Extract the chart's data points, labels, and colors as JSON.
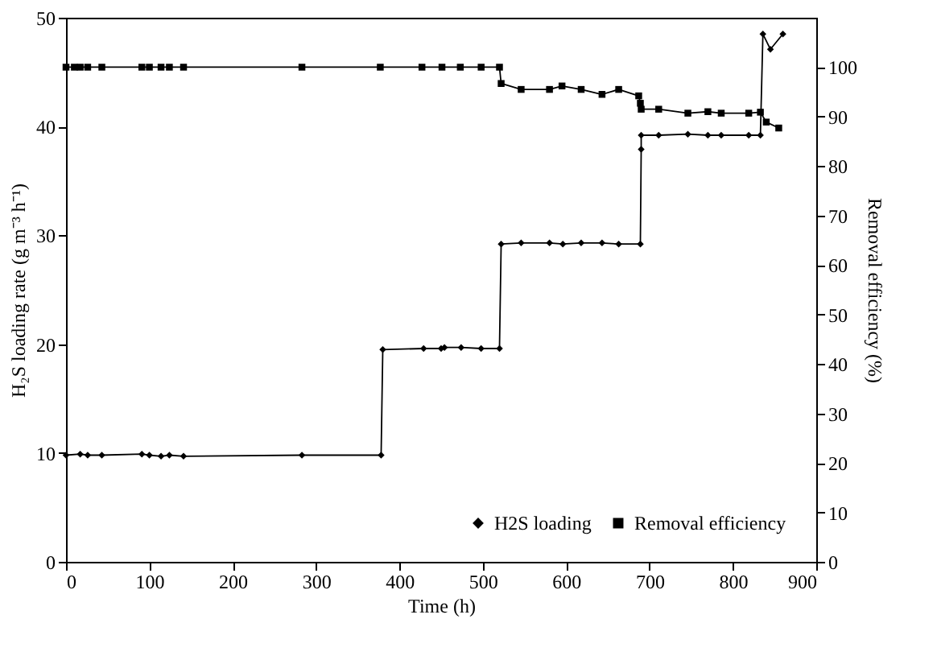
{
  "chart_data": {
    "type": "line",
    "xlabel": "Time (h)",
    "ylabel": "H₂S loading rate (g m⁻³ h⁻¹)",
    "y2label": "Removal efficiency (%)",
    "xlim": [
      0,
      900
    ],
    "xticks": [
      0,
      100,
      200,
      300,
      400,
      500,
      600,
      700,
      800,
      900
    ],
    "ylim": [
      0,
      50
    ],
    "yticks": [
      0,
      10,
      20,
      30,
      40,
      50
    ],
    "y2lim": [
      0,
      110
    ],
    "y2ticks": [
      0,
      10,
      20,
      30,
      40,
      50,
      60,
      70,
      80,
      90,
      100
    ],
    "grid": false,
    "legend": "bottom right",
    "line_style": "solid",
    "series": [
      {
        "name": "H2S loading",
        "color": "#000000",
        "marker": "diamond",
        "axis": "y",
        "x": [
          0,
          17,
          26,
          43,
          91,
          100,
          114,
          124,
          141,
          283,
          378,
          380,
          429,
          450,
          454,
          474,
          498,
          520,
          522,
          546,
          580,
          596,
          618,
          643,
          663,
          689,
          690,
          690,
          711,
          746,
          770,
          786,
          819,
          833,
          836,
          845,
          860
        ],
        "values": [
          9.8,
          9.9,
          9.8,
          9.8,
          9.9,
          9.8,
          9.7,
          9.8,
          9.7,
          9.8,
          9.8,
          19.5,
          19.6,
          19.6,
          19.7,
          19.7,
          19.6,
          19.6,
          29.2,
          29.3,
          29.3,
          29.2,
          29.3,
          29.3,
          29.2,
          29.2,
          37.9,
          39.2,
          39.2,
          39.3,
          39.2,
          39.2,
          39.2,
          39.2,
          48.5,
          47.1,
          48.5
        ]
      },
      {
        "name": "Removal efficiency",
        "color": "#000000",
        "marker": "square",
        "axis": "y2",
        "x": [
          0,
          10,
          17,
          26,
          43,
          91,
          100,
          114,
          124,
          141,
          283,
          377,
          427,
          451,
          473,
          498,
          520,
          522,
          546,
          580,
          595,
          618,
          643,
          663,
          687,
          689,
          690,
          711,
          746,
          770,
          786,
          819,
          833,
          840,
          855
        ],
        "values": [
          100,
          100,
          100,
          100,
          100,
          100,
          100,
          100,
          100,
          100,
          100,
          100,
          100,
          100,
          100,
          100,
          100,
          96.7,
          95.5,
          95.5,
          96.2,
          95.5,
          94.5,
          95.5,
          94.2,
          92.7,
          91.5,
          91.5,
          90.7,
          91.0,
          90.7,
          90.7,
          90.9,
          88.9,
          87.7
        ]
      }
    ]
  }
}
